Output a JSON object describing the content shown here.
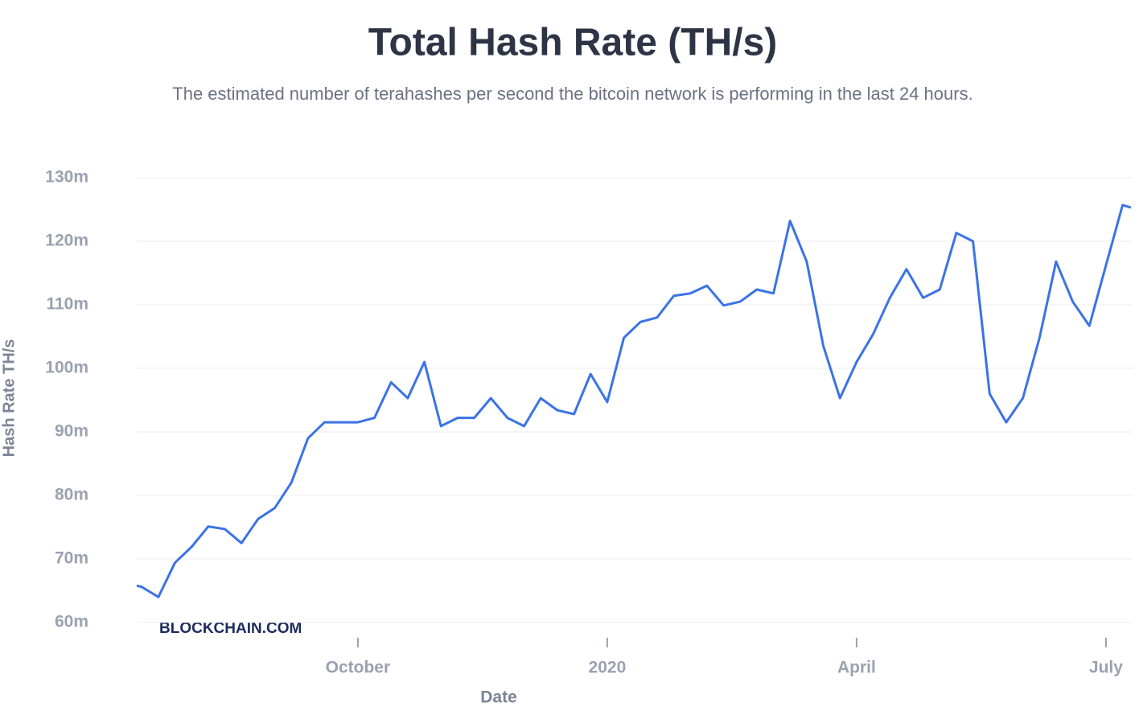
{
  "chart_data": {
    "type": "line",
    "title": "Total Hash Rate (TH/s)",
    "subtitle": "The estimated number of terahashes per second the bitcoin network is performing in the last 24 hours.",
    "x_label": "Date",
    "y_label": "Hash Rate TH/s",
    "watermark": "BLOCKCHAIN.COM",
    "x": [
      6.34,
      6.4,
      6.6,
      6.8,
      7.0,
      7.2,
      7.4,
      7.6,
      7.8,
      8.0,
      8.2,
      8.4,
      8.6,
      8.8,
      9.0,
      9.2,
      9.4,
      9.6,
      9.8,
      10.0,
      10.2,
      10.4,
      10.6,
      10.8,
      11.0,
      11.2,
      11.4,
      11.6,
      11.8,
      12.0,
      12.2,
      12.4,
      12.6,
      12.8,
      13.0,
      13.2,
      13.4,
      13.6,
      13.8,
      14.0,
      14.2,
      14.4,
      14.6,
      14.8,
      15.0,
      15.2,
      15.4,
      15.6,
      15.8,
      16.0,
      16.2,
      16.4,
      16.6,
      16.8,
      17.0,
      17.2,
      17.4,
      17.6,
      17.8,
      18.0,
      18.2,
      18.3
    ],
    "series": [
      {
        "name": "Hash Rate",
        "color": "#3b73e6",
        "values": [
          65800000,
          65600000,
          64000000,
          69400000,
          71900000,
          75100000,
          74700000,
          72500000,
          76300000,
          78000000,
          82000000,
          89000000,
          91500000,
          91500000,
          91500000,
          92200000,
          97800000,
          95300000,
          101000000,
          90900000,
          92200000,
          92200000,
          95300000,
          92200000,
          90900000,
          95300000,
          93400000,
          92800000,
          99100000,
          94700000,
          104800000,
          107300000,
          108000000,
          111400000,
          111800000,
          113000000,
          109900000,
          110500000,
          112400000,
          111800000,
          123200000,
          116800000,
          103500000,
          95300000,
          101000000,
          105400000,
          111100000,
          115600000,
          111100000,
          112400000,
          121300000,
          120000000,
          96000000,
          91500000,
          95300000,
          104800000,
          116800000,
          110500000,
          106700000,
          116200000,
          125700000,
          125300000
        ]
      }
    ],
    "xlim": [
      6.34,
      18.32
    ],
    "xticks": [
      {
        "value": 9,
        "label": "October"
      },
      {
        "value": 12,
        "label": "2020"
      },
      {
        "value": 15,
        "label": "April"
      },
      {
        "value": 18,
        "label": "July"
      }
    ],
    "ylim": [
      60000000,
      130000000
    ],
    "yticks": [
      {
        "value": 60000000,
        "label": "60m"
      },
      {
        "value": 70000000,
        "label": "70m"
      },
      {
        "value": 80000000,
        "label": "80m"
      },
      {
        "value": 90000000,
        "label": "90m"
      },
      {
        "value": 100000000,
        "label": "100m"
      },
      {
        "value": 110000000,
        "label": "110m"
      },
      {
        "value": 120000000,
        "label": "120m"
      },
      {
        "value": 130000000,
        "label": "130m"
      }
    ],
    "grid": true
  }
}
